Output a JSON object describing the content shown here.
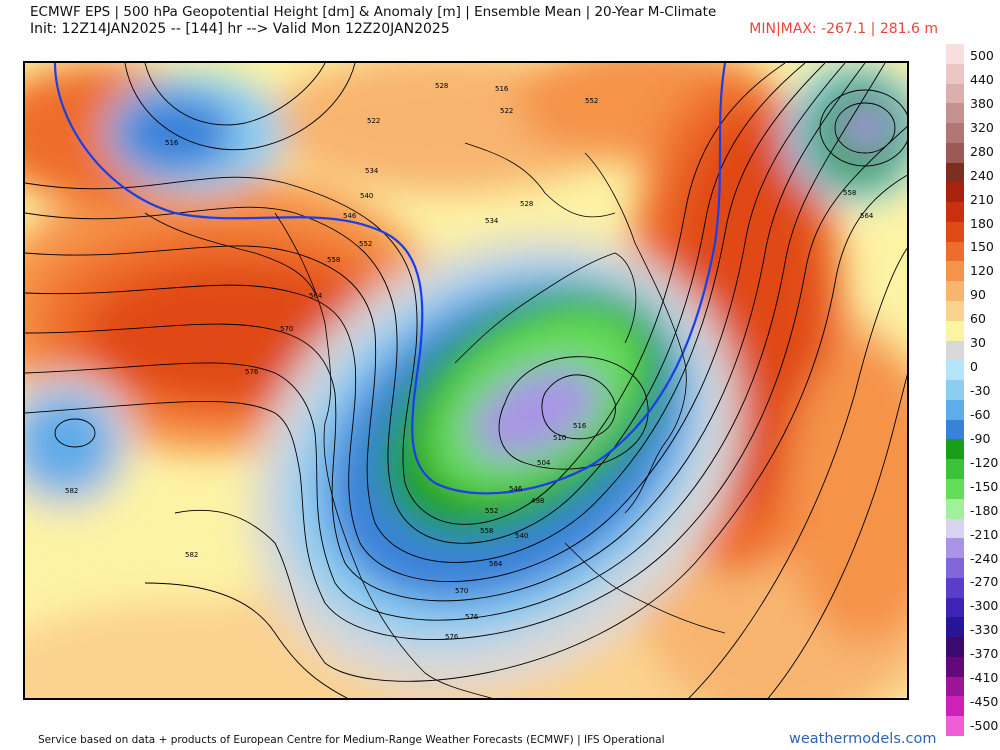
{
  "header": {
    "title_line1": "ECMWF EPS | 500 hPa Geopotential Height [dm] & Anomaly [m] | Ensemble Mean | 20-Year M-Climate",
    "title_line2": "Init: 12Z14JAN2025 -- [144] hr --> Valid Mon 12Z20JAN2025",
    "minmax": "MIN|MAX: -267.1 | 281.6 m"
  },
  "colorbar": {
    "ticks": [
      "500",
      "440",
      "380",
      "320",
      "280",
      "240",
      "210",
      "180",
      "150",
      "120",
      "90",
      "60",
      "30",
      "0",
      "-30",
      "-60",
      "-90",
      "-120",
      "-150",
      "-180",
      "-210",
      "-240",
      "-270",
      "-300",
      "-330",
      "-370",
      "-410",
      "-450",
      "-500"
    ],
    "colors": [
      "#f8dedd",
      "#ecc6c4",
      "#dcaeac",
      "#c69290",
      "#b27673",
      "#9b5a55",
      "#7c2e20",
      "#a8220f",
      "#cc2f10",
      "#e04a17",
      "#ef6d2a",
      "#f5934a",
      "#f8b570",
      "#fbd28f",
      "#fdf3a5",
      "#d8d8d8",
      "#b3e6f8",
      "#8ecdf2",
      "#5eace8",
      "#3a82d9",
      "#1a9e1a",
      "#3bc13a",
      "#66dd5a",
      "#a3f09a",
      "#d8d2f3",
      "#a994e6",
      "#8066da",
      "#5a3ec9",
      "#3f22b8",
      "#281594",
      "#3a0a6e",
      "#62087a",
      "#9a1597",
      "#cc22b8",
      "#ee5fd5"
    ]
  },
  "map": {
    "contour_labels": [
      "516",
      "522",
      "528",
      "534",
      "540",
      "546",
      "552",
      "558",
      "564",
      "570",
      "576",
      "582",
      "516",
      "510",
      "504",
      "498",
      "552",
      "558",
      "564",
      "516",
      "522",
      "528",
      "534",
      "540",
      "546",
      "552",
      "558",
      "564",
      "570",
      "576",
      "576",
      "582"
    ]
  },
  "footer": {
    "left": "Service based on data + products of European Centre for Medium-Range Weather Forecasts (ECMWF) | IFS Operational",
    "right": "weathermodels.com"
  }
}
